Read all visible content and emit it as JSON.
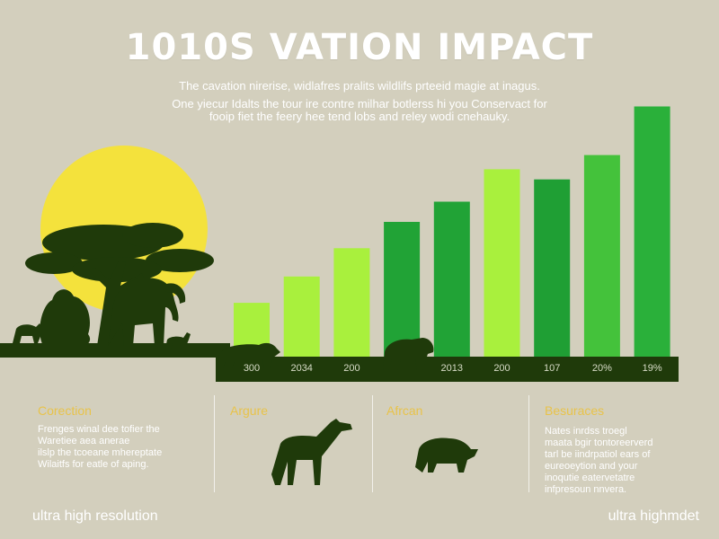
{
  "header": {
    "title": "1010S VATION IMPACT",
    "subtitle_1": "The cavation nirerise, widlafres pralits wildlifs prteeid magie at inagus.",
    "subtitle_2": "One yiecur Idalts the tour ire contre milhar botlerss hi you Conservact for",
    "subtitle_3": "fooip fiet the feery hee tend lobs and reley wodi cnehauky."
  },
  "chart_data": {
    "type": "bar",
    "categories": [
      "300",
      "2034",
      "200",
      "",
      "2013",
      "200",
      "107",
      "20%",
      "19%"
    ],
    "values": [
      27,
      40,
      54,
      67,
      77,
      93,
      88,
      100,
      124
    ],
    "ylim": [
      0,
      130
    ],
    "grid": false,
    "colors": [
      "#a9f03d",
      "#a9f03d",
      "#a9f03d",
      "#21a336",
      "#21a336",
      "#a9f03d",
      "#1f9f34",
      "#44c23b",
      "#2ab03a"
    ]
  },
  "panels": [
    {
      "title": "Corection",
      "lines": [
        "Frenges winal dee tofier the",
        "Waretiee aea anerae",
        "ilslp the tcoeane mhereptate",
        "Wilaitfs for eatle of aping."
      ]
    },
    {
      "title": "Argure",
      "lines": []
    },
    {
      "title": "Afrcan",
      "lines": []
    },
    {
      "title": "Besuraces",
      "lines": [
        "Nates inrdss troegl",
        "maata bgir tontoreerverd",
        "tarl be iindrpatiol ears of",
        "eureoeytion and your",
        "inoqutie eatervetatre",
        "infpresoun nnvera."
      ]
    }
  ],
  "footer": {
    "left": "ultra high resolution",
    "right": "ultra highmdet"
  },
  "theme": {
    "background": "#d3cfbd",
    "silhouette": "#1f3a0a",
    "sun": "#f4e23c",
    "accent": "#e8c34a"
  },
  "icons": [
    "sun-icon",
    "acacia-tree-icon",
    "bush-icon",
    "elephant-icon",
    "lion-icon",
    "gazelle-icon",
    "boar-icon",
    "bison-icon",
    "giraffe-icon",
    "rhino-icon"
  ]
}
